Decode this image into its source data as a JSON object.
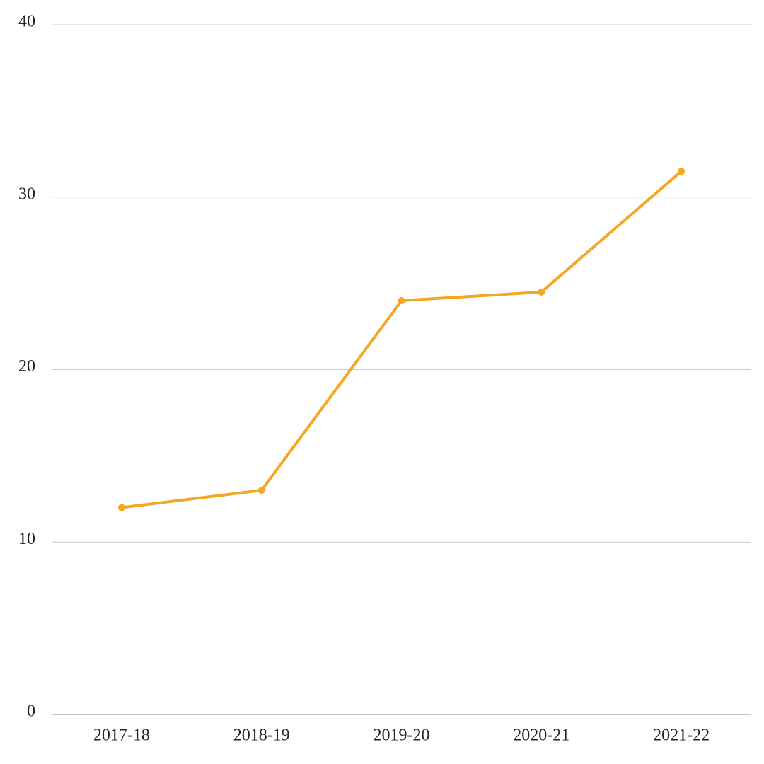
{
  "chart_data": {
    "type": "line",
    "categories": [
      "2017-18",
      "2018-19",
      "2019-20",
      "2020-21",
      "2021-22"
    ],
    "series": [
      {
        "color": "#f5a623",
        "values": [
          12,
          13,
          24,
          24.5,
          31.5
        ]
      }
    ],
    "ylim": [
      0,
      40
    ],
    "yticks": [
      0,
      10,
      20,
      30,
      40
    ],
    "grid": true
  }
}
